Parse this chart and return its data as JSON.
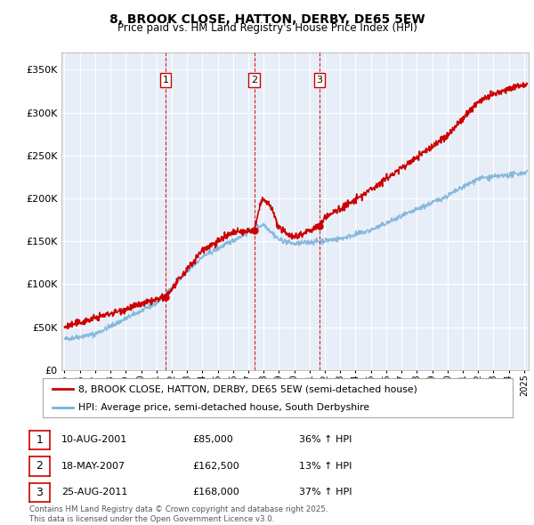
{
  "title1": "8, BROOK CLOSE, HATTON, DERBY, DE65 5EW",
  "title2": "Price paid vs. HM Land Registry's House Price Index (HPI)",
  "legend_line1": "8, BROOK CLOSE, HATTON, DERBY, DE65 5EW (semi-detached house)",
  "legend_line2": "HPI: Average price, semi-detached house, South Derbyshire",
  "footnote": "Contains HM Land Registry data © Crown copyright and database right 2025.\nThis data is licensed under the Open Government Licence v3.0.",
  "sale_labels": [
    "1",
    "2",
    "3"
  ],
  "sale_dates_display": [
    "10-AUG-2001",
    "18-MAY-2007",
    "25-AUG-2011"
  ],
  "sale_prices_display": [
    "£85,000",
    "£162,500",
    "£168,000"
  ],
  "sale_hpi_display": [
    "36% ↑ HPI",
    "13% ↑ HPI",
    "37% ↑ HPI"
  ],
  "sale_dates_num": [
    2001.61,
    2007.38,
    2011.65
  ],
  "sale_prices": [
    85000,
    162500,
    168000
  ],
  "property_color": "#cc0000",
  "hpi_color": "#7ab3d9",
  "background_color": "#e8eef8",
  "grid_color": "#ffffff",
  "ylim": [
    0,
    370000
  ],
  "xlim_start": 1994.8,
  "xlim_end": 2025.3,
  "yticks": [
    0,
    50000,
    100000,
    150000,
    200000,
    250000,
    300000,
    350000
  ],
  "xtick_start": 1995,
  "xtick_end": 2025
}
